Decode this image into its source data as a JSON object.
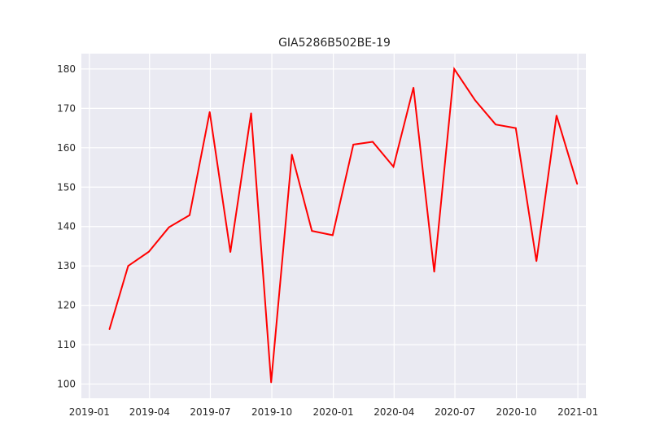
{
  "chart_data": {
    "type": "line",
    "title": "GIA5286B502BE-19",
    "xlabel": "",
    "ylabel": "",
    "x_axis_type": "date",
    "xlim": [
      "2018-12-20",
      "2021-01-13"
    ],
    "ylim": [
      96.4,
      183.9
    ],
    "x_ticks": [
      {
        "date": "2019-01-01",
        "label": "2019-01"
      },
      {
        "date": "2019-04-01",
        "label": "2019-04"
      },
      {
        "date": "2019-07-01",
        "label": "2019-07"
      },
      {
        "date": "2019-10-01",
        "label": "2019-10"
      },
      {
        "date": "2020-01-01",
        "label": "2020-01"
      },
      {
        "date": "2020-04-01",
        "label": "2020-04"
      },
      {
        "date": "2020-07-01",
        "label": "2020-07"
      },
      {
        "date": "2020-10-01",
        "label": "2020-10"
      },
      {
        "date": "2021-01-01",
        "label": "2021-01"
      }
    ],
    "y_ticks": [
      100,
      110,
      120,
      130,
      140,
      150,
      160,
      170,
      180
    ],
    "grid": true,
    "style": {
      "background": "#EAEAF2",
      "grid_color": "#FFFFFF",
      "line_color": "#FF0000"
    },
    "series": [
      {
        "x": [
          "2019-01-31",
          "2019-02-28",
          "2019-03-31",
          "2019-04-30",
          "2019-05-31",
          "2019-06-30",
          "2019-07-31",
          "2019-08-31",
          "2019-09-30",
          "2019-10-31",
          "2019-11-30",
          "2019-12-31",
          "2020-01-31",
          "2020-02-29",
          "2020-03-31",
          "2020-04-30",
          "2020-05-31",
          "2020-06-30",
          "2020-07-31",
          "2020-08-31",
          "2020-09-30",
          "2020-10-31",
          "2020-11-30",
          "2020-12-31"
        ],
        "values": [
          113.9,
          130.0,
          133.6,
          139.8,
          142.9,
          169.1,
          133.5,
          168.8,
          100.4,
          158.3,
          138.9,
          137.8,
          160.8,
          161.5,
          155.2,
          175.3,
          128.5,
          180.0,
          172.1,
          165.9,
          165.0,
          131.2,
          168.2,
          150.8
        ]
      }
    ]
  }
}
